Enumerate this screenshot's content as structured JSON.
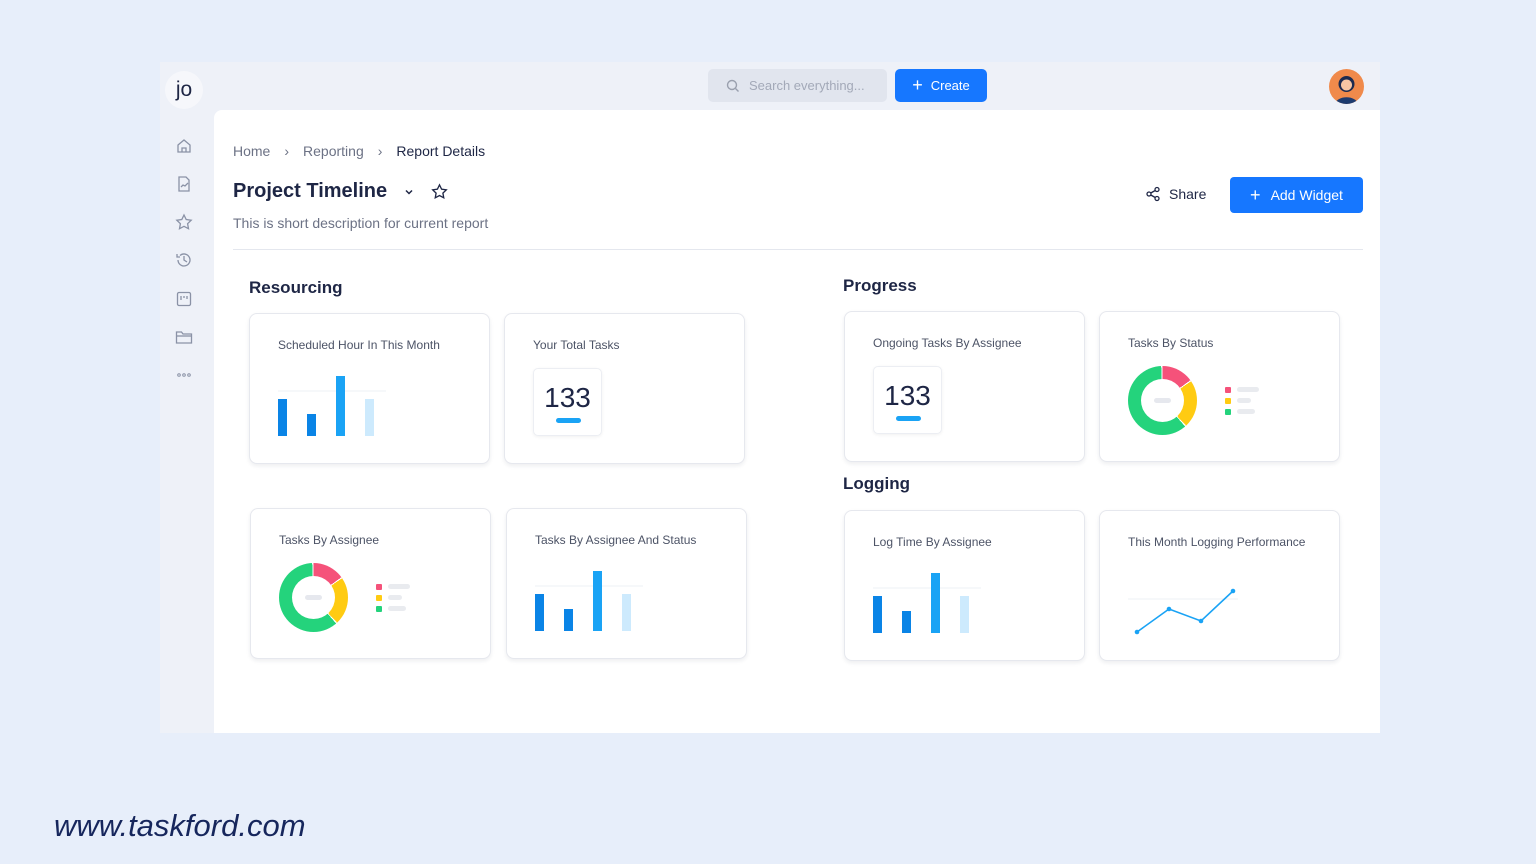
{
  "app": {
    "logo": "jo"
  },
  "sidebar": {
    "items": [
      "home-icon",
      "report-icon",
      "star-icon",
      "history-icon",
      "board-icon",
      "folder-icon",
      "more-icon"
    ]
  },
  "topbar": {
    "search_placeholder": "Search everything...",
    "create_label": "Create"
  },
  "breadcrumb": [
    "Home",
    "Reporting",
    "Report Details"
  ],
  "header": {
    "title": "Project Timeline",
    "description": "This is short description for current report",
    "share_label": "Share",
    "add_widget_label": "Add Widget"
  },
  "sections": {
    "resourcing": "Resourcing",
    "progress": "Progress",
    "logging": "Logging"
  },
  "widgets": {
    "scheduled": "Scheduled Hour In This Month",
    "total": "Your Total Tasks",
    "total_value": "133",
    "ongoing": "Ongoing Tasks By Assignee",
    "ongoing_value": "133",
    "status": "Tasks By Status",
    "assignee": "Tasks By Assignee",
    "assignee_status": "Tasks By Assignee And Status",
    "logtime": "Log Time By Assignee",
    "logging_perf": "This Month Logging Performance"
  },
  "colors": {
    "accent": "#1677ff",
    "red": "#f5527a",
    "yellow": "#ffcb12",
    "green": "#24d37c",
    "bar": "#1aa3f5"
  },
  "footer": {
    "url": "www.taskford.com"
  }
}
